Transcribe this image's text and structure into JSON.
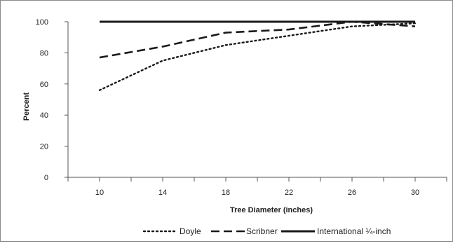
{
  "chart_data": {
    "type": "line",
    "xlabel": "Tree Diameter (inches)",
    "ylabel": "Percent",
    "x": [
      10,
      14,
      18,
      22,
      26,
      30
    ],
    "x_tick_labels": [
      "10",
      "14",
      "18",
      "22",
      "26",
      "30"
    ],
    "y_tick_labels": [
      "0",
      "20",
      "40",
      "60",
      "80",
      "100"
    ],
    "y_ticks": [
      0,
      20,
      40,
      60,
      80,
      100
    ],
    "ylim": [
      0,
      100
    ],
    "grid": false,
    "legend_position": "bottom",
    "series": [
      {
        "name": "Doyle",
        "style": "dotted",
        "color": "#1a1a1a",
        "values": [
          56,
          75,
          85,
          91,
          97,
          99
        ]
      },
      {
        "name": "Scribner",
        "style": "dashed",
        "color": "#1a1a1a",
        "values": [
          77,
          84,
          93,
          95,
          100,
          97
        ]
      },
      {
        "name": "International ¼-inch",
        "style": "solid",
        "color": "#1a1a1a",
        "values": [
          100,
          100,
          100,
          100,
          100,
          100
        ]
      }
    ]
  }
}
